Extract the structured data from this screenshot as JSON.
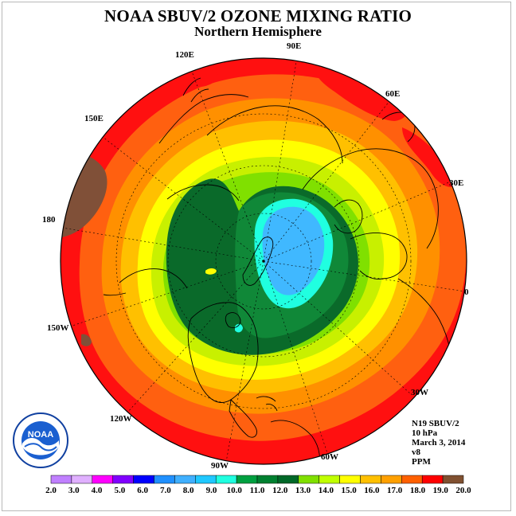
{
  "header": {
    "title": "NOAA SBUV/2 OZONE MIXING RATIO",
    "subtitle": "Northern Hemisphere"
  },
  "map": {
    "projection": "polar-stereographic-north",
    "longitude_labels": [
      "90E",
      "60E",
      "30E",
      "0",
      "30W",
      "60W",
      "90W",
      "120W",
      "150W",
      "180",
      "150E",
      "120E"
    ]
  },
  "info": {
    "satellite": "N19 SBUV/2",
    "level": "10 hPa",
    "date": "March 3, 2014",
    "version": "v8",
    "units": "PPM"
  },
  "logo": {
    "text": "NOAA"
  },
  "colorbar": {
    "labels": [
      "2.0",
      "3.0",
      "4.0",
      "5.0",
      "6.0",
      "7.0",
      "8.0",
      "9.0",
      "10.0",
      "11.0",
      "12.0",
      "13.0",
      "14.0",
      "15.0",
      "16.0",
      "17.0",
      "18.0",
      "19.0",
      "20.0"
    ],
    "colors": [
      "#c080ff",
      "#e0b0ff",
      "#ff00ff",
      "#8000ff",
      "#0000ff",
      "#2090ff",
      "#40b0ff",
      "#20c8ff",
      "#20ffe0",
      "#00a040",
      "#008030",
      "#006828",
      "#80e000",
      "#c0ff00",
      "#ffff00",
      "#ffc000",
      "#ffa000",
      "#ff6000",
      "#ff0000",
      "#805030"
    ]
  },
  "colors": {
    "red": "#ff1010",
    "orange_red": "#ff6010",
    "orange": "#ff9000",
    "gold": "#ffc000",
    "yellow": "#ffff00",
    "yellow_green": "#c8f000",
    "light_green": "#80e000",
    "dark_green": "#0a6a2a",
    "mid_green": "#108838",
    "cyan": "#20ffe0",
    "light_blue": "#40b8ff",
    "brown": "#805038"
  }
}
